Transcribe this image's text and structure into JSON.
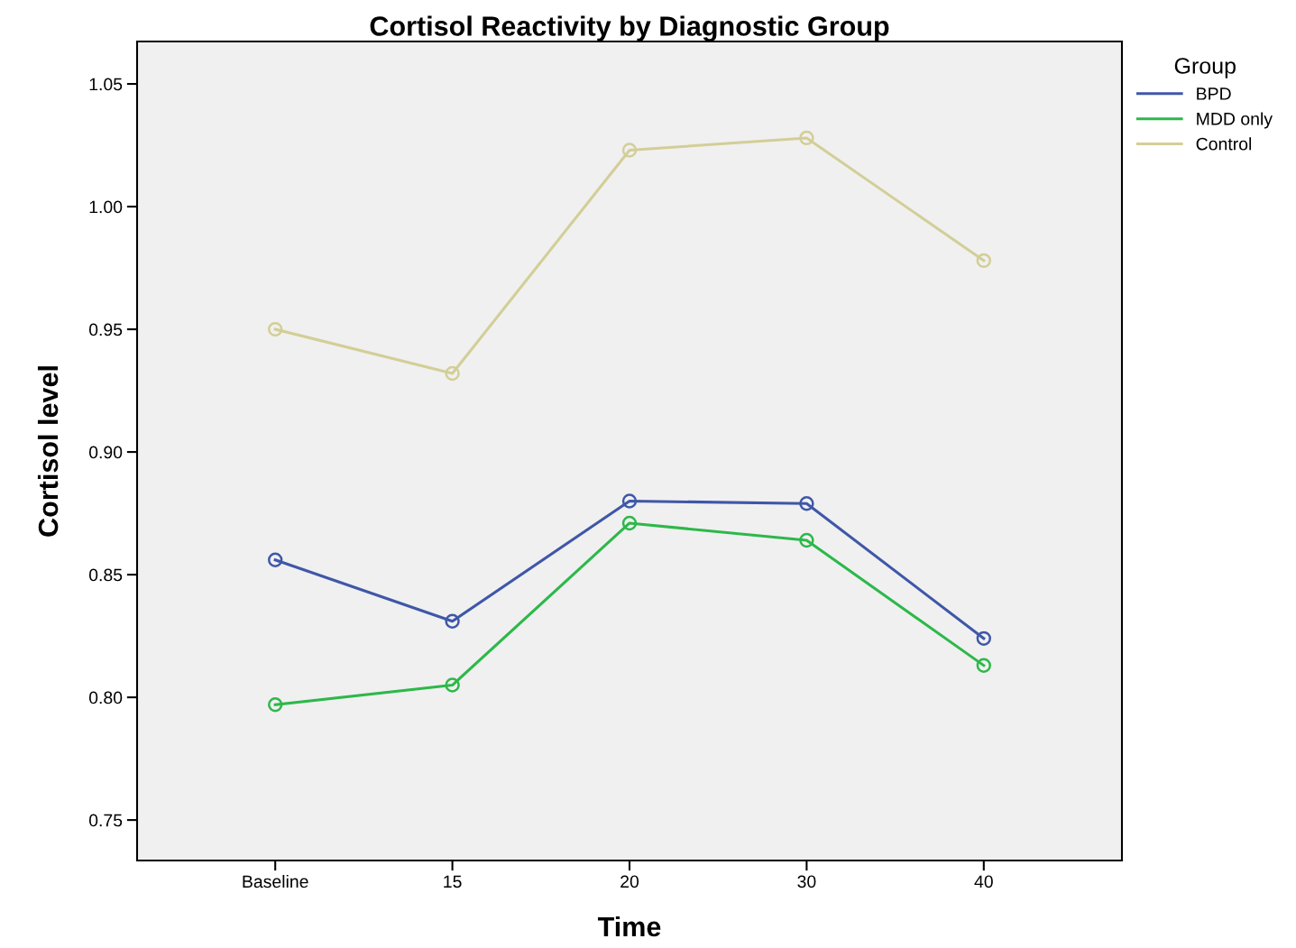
{
  "chart_data": {
    "type": "line",
    "title": "Cortisol Reactivity by Diagnostic Group",
    "xlabel": "Time",
    "ylabel": "Cortisol level",
    "legend_title": "Group",
    "categories": [
      "Baseline",
      "15",
      "20",
      "30",
      "40"
    ],
    "series": [
      {
        "name": "BPD",
        "color": "#3f57a8",
        "values": [
          0.856,
          0.831,
          0.88,
          0.879,
          0.824
        ]
      },
      {
        "name": "MDD only",
        "color": "#2db84a",
        "values": [
          0.797,
          0.805,
          0.871,
          0.864,
          0.813
        ]
      },
      {
        "name": "Control",
        "color": "#d3ce97",
        "values": [
          0.95,
          0.932,
          1.023,
          1.028,
          0.978
        ]
      }
    ],
    "ylim": [
      0.7335,
      1.0673
    ],
    "yticks": [
      {
        "value": 0.75,
        "label": "0.75"
      },
      {
        "value": 0.8,
        "label": "0.80"
      },
      {
        "value": 0.85,
        "label": "0.85"
      },
      {
        "value": 0.9,
        "label": "0.90"
      },
      {
        "value": 0.95,
        "label": "0.95"
      },
      {
        "value": 1.0,
        "label": "1.00"
      },
      {
        "value": 1.05,
        "label": "1.05"
      }
    ],
    "grid": false,
    "legend": "right",
    "marker": "circle",
    "line_style": "solid"
  }
}
